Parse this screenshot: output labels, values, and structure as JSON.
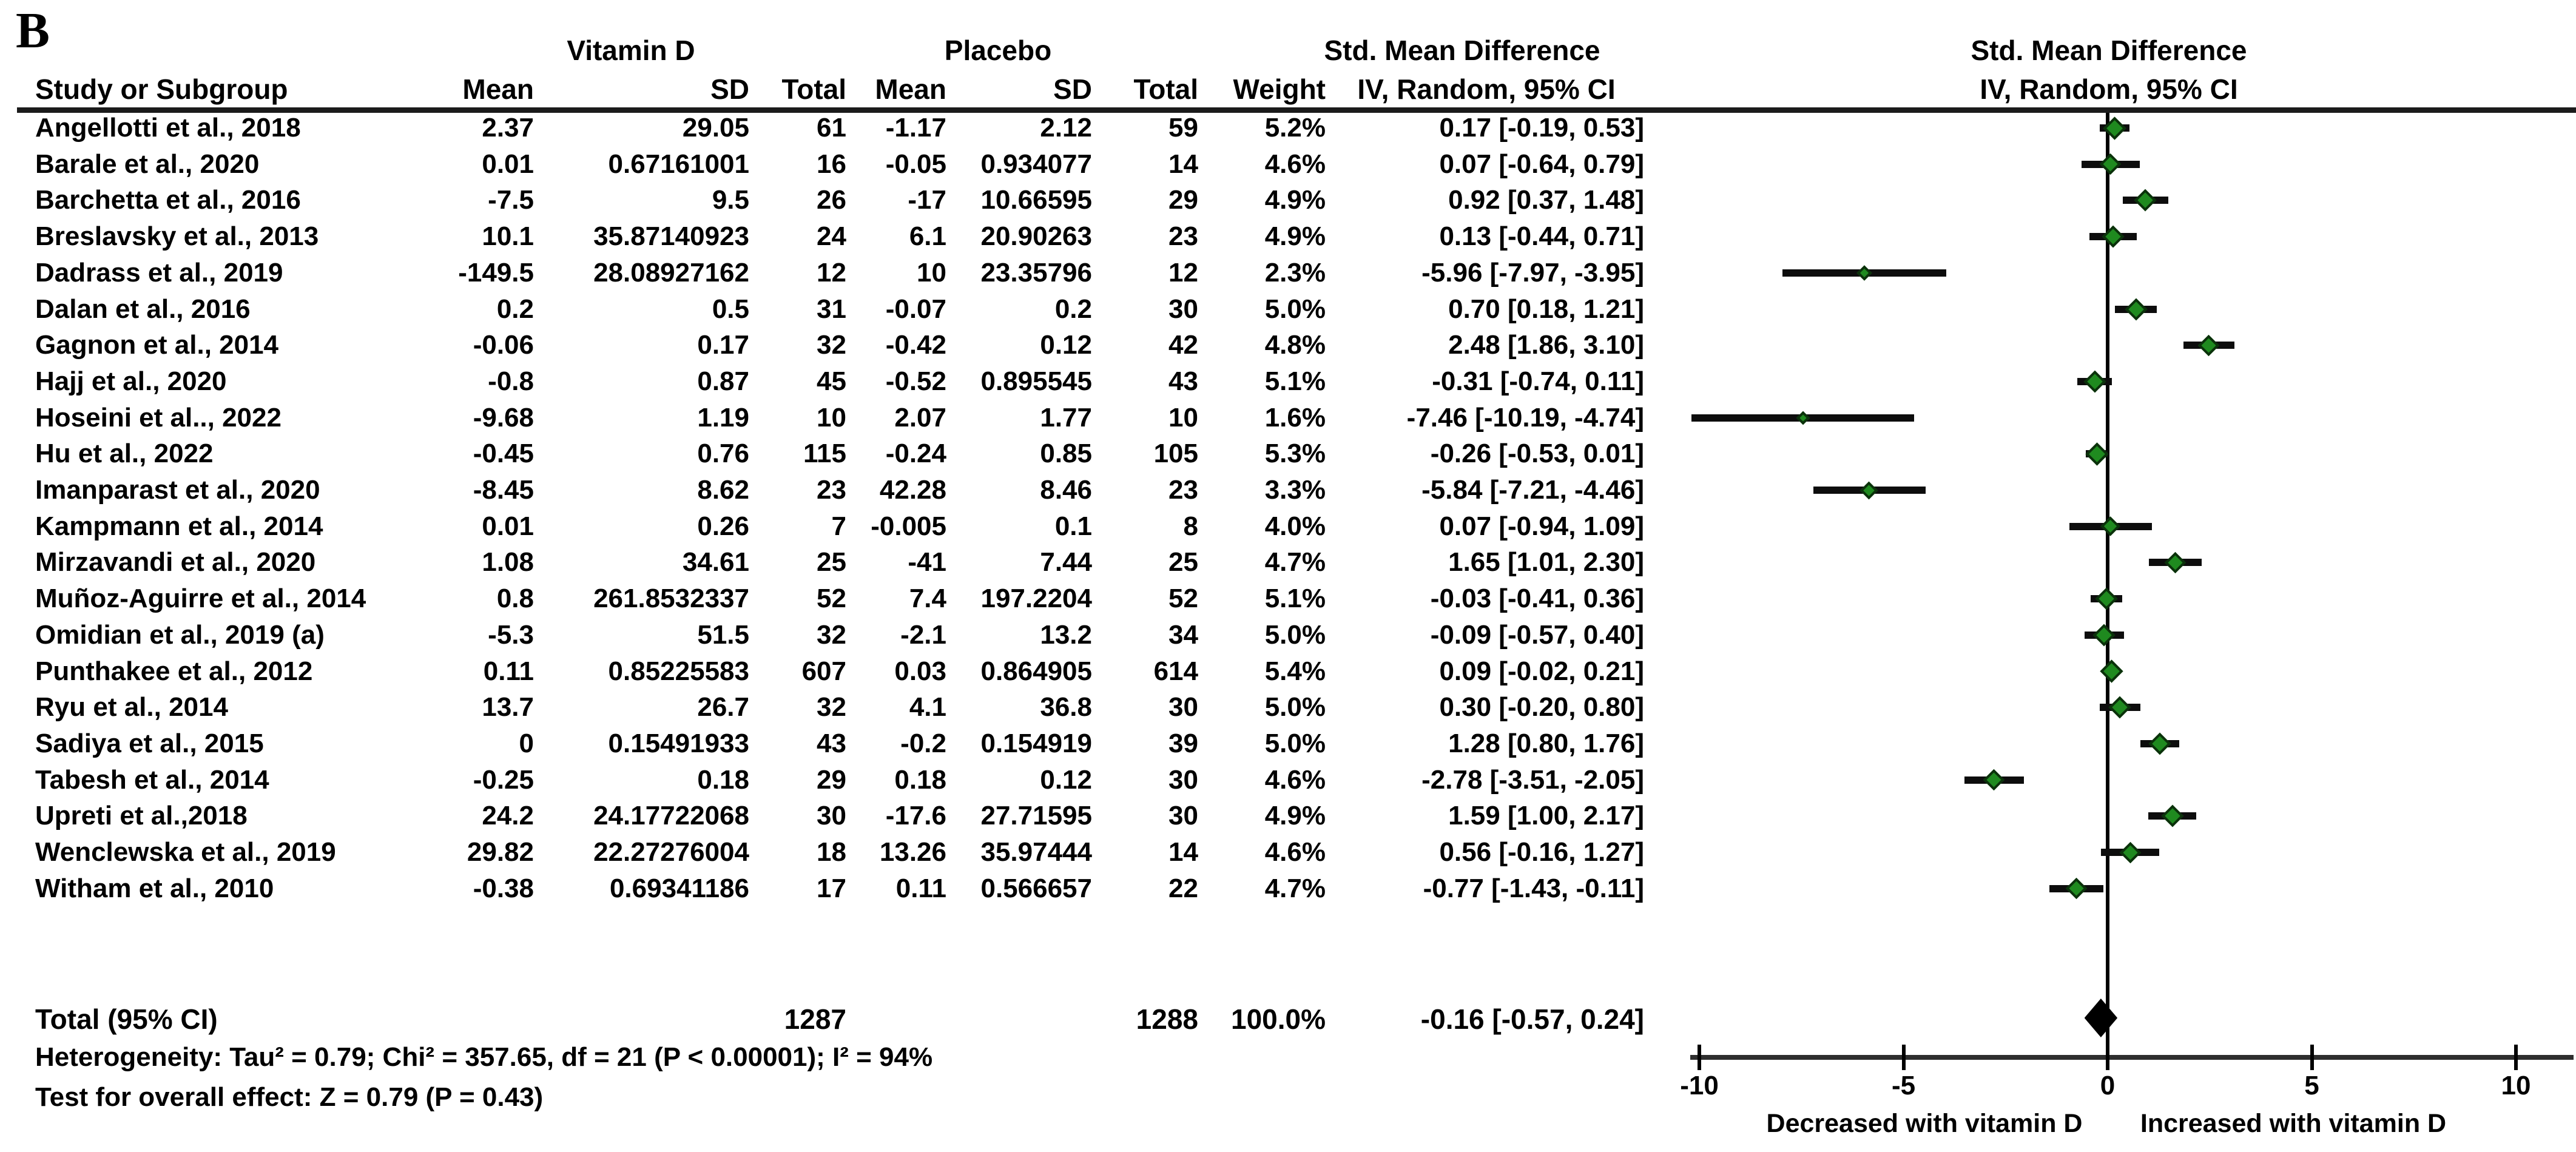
{
  "panel_label": "B",
  "header": {
    "study_col": "Study or Subgroup",
    "group_vitamin_d": "Vitamin D",
    "group_placebo": "Placebo",
    "vd_mean_col": "Mean",
    "vd_sd_col": "SD",
    "vd_total_col": "Total",
    "pl_mean_col": "Mean",
    "pl_sd_col": "SD",
    "pl_total_col": "Total",
    "weight_col": "Weight",
    "smd_col_title": "Std. Mean Difference",
    "smd_col_subtitle": "IV, Random, 95% CI",
    "plot_title": "Std. Mean Difference",
    "plot_subtitle": "IV, Random, 95% CI"
  },
  "footer": {
    "heterogeneity": "Heterogeneity: Tau² = 0.79; Chi² = 357.65, df = 21 (P < 0.00001); I² = 94%",
    "overall_effect": "Test for overall effect: Z = 0.79 (P = 0.43)"
  },
  "chart_data": {
    "type": "forest",
    "effect_measure": "Std. Mean Difference, IV, Random, 95% CI",
    "xticks": [
      -10,
      -5,
      0,
      5,
      10
    ],
    "xtick_labels": [
      "-10",
      "-5",
      "0",
      "5",
      "10"
    ],
    "xlim": [
      -10.2,
      11.4
    ],
    "x_axis_note_left": "Decreased with vitamin D",
    "x_axis_note_right": "Increased with vitamin D",
    "marker_color": "#1f8a1f",
    "marker_border_color": "#0b310b",
    "ci_color": "#0d0d0d",
    "studies": [
      {
        "name": "Angellotti et al., 2018",
        "vd_mean": "2.37",
        "vd_sd": "29.05",
        "vd_total": "61",
        "pl_mean": "-1.17",
        "pl_sd": "2.12",
        "pl_total": "59",
        "weight": "5.2%",
        "ci_text": "0.17 [-0.19, 0.53]",
        "est": 0.17,
        "lo": -0.19,
        "hi": 0.53
      },
      {
        "name": "Barale et al., 2020",
        "vd_mean": "0.01",
        "vd_sd": "0.67161001",
        "vd_total": "16",
        "pl_mean": "-0.05",
        "pl_sd": "0.934077",
        "pl_total": "14",
        "weight": "4.6%",
        "ci_text": "0.07 [-0.64, 0.79]",
        "est": 0.07,
        "lo": -0.64,
        "hi": 0.79
      },
      {
        "name": "Barchetta et al., 2016",
        "vd_mean": "-7.5",
        "vd_sd": "9.5",
        "vd_total": "26",
        "pl_mean": "-17",
        "pl_sd": "10.66595",
        "pl_total": "29",
        "weight": "4.9%",
        "ci_text": "0.92 [0.37, 1.48]",
        "est": 0.92,
        "lo": 0.37,
        "hi": 1.48
      },
      {
        "name": "Breslavsky et al., 2013",
        "vd_mean": "10.1",
        "vd_sd": "35.87140923",
        "vd_total": "24",
        "pl_mean": "6.1",
        "pl_sd": "20.90263",
        "pl_total": "23",
        "weight": "4.9%",
        "ci_text": "0.13 [-0.44, 0.71]",
        "est": 0.13,
        "lo": -0.44,
        "hi": 0.71
      },
      {
        "name": "Dadrass et al., 2019",
        "vd_mean": "-149.5",
        "vd_sd": "28.08927162",
        "vd_total": "12",
        "pl_mean": "10",
        "pl_sd": "23.35796",
        "pl_total": "12",
        "weight": "2.3%",
        "ci_text": "-5.96 [-7.97, -3.95]",
        "est": -5.96,
        "lo": -7.97,
        "hi": -3.95
      },
      {
        "name": "Dalan et al., 2016",
        "vd_mean": "0.2",
        "vd_sd": "0.5",
        "vd_total": "31",
        "pl_mean": "-0.07",
        "pl_sd": "0.2",
        "pl_total": "30",
        "weight": "5.0%",
        "ci_text": "0.70 [0.18, 1.21]",
        "est": 0.7,
        "lo": 0.18,
        "hi": 1.21
      },
      {
        "name": "Gagnon et al., 2014",
        "vd_mean": "-0.06",
        "vd_sd": "0.17",
        "vd_total": "32",
        "pl_mean": "-0.42",
        "pl_sd": "0.12",
        "pl_total": "42",
        "weight": "4.8%",
        "ci_text": "2.48 [1.86, 3.10]",
        "est": 2.48,
        "lo": 1.86,
        "hi": 3.1
      },
      {
        "name": "Hajj et al., 2020",
        "vd_mean": "-0.8",
        "vd_sd": "0.87",
        "vd_total": "45",
        "pl_mean": "-0.52",
        "pl_sd": "0.895545",
        "pl_total": "43",
        "weight": "5.1%",
        "ci_text": "-0.31 [-0.74, 0.11]",
        "est": -0.31,
        "lo": -0.74,
        "hi": 0.11
      },
      {
        "name": "Hoseini et al.., 2022",
        "vd_mean": "-9.68",
        "vd_sd": "1.19",
        "vd_total": "10",
        "pl_mean": "2.07",
        "pl_sd": "1.77",
        "pl_total": "10",
        "weight": "1.6%",
        "ci_text": "-7.46 [-10.19, -4.74]",
        "est": -7.46,
        "lo": -10.19,
        "hi": -4.74
      },
      {
        "name": "Hu et al., 2022",
        "vd_mean": "-0.45",
        "vd_sd": "0.76",
        "vd_total": "115",
        "pl_mean": "-0.24",
        "pl_sd": "0.85",
        "pl_total": "105",
        "weight": "5.3%",
        "ci_text": "-0.26 [-0.53, 0.01]",
        "est": -0.26,
        "lo": -0.53,
        "hi": 0.01
      },
      {
        "name": "Imanparast et al., 2020",
        "vd_mean": "-8.45",
        "vd_sd": "8.62",
        "vd_total": "23",
        "pl_mean": "42.28",
        "pl_sd": "8.46",
        "pl_total": "23",
        "weight": "3.3%",
        "ci_text": "-5.84 [-7.21, -4.46]",
        "est": -5.84,
        "lo": -7.21,
        "hi": -4.46
      },
      {
        "name": "Kampmann et al., 2014",
        "vd_mean": "0.01",
        "vd_sd": "0.26",
        "vd_total": "7",
        "pl_mean": "-0.005",
        "pl_sd": "0.1",
        "pl_total": "8",
        "weight": "4.0%",
        "ci_text": "0.07 [-0.94, 1.09]",
        "est": 0.07,
        "lo": -0.94,
        "hi": 1.09
      },
      {
        "name": "Mirzavandi et al., 2020",
        "vd_mean": "1.08",
        "vd_sd": "34.61",
        "vd_total": "25",
        "pl_mean": "-41",
        "pl_sd": "7.44",
        "pl_total": "25",
        "weight": "4.7%",
        "ci_text": "1.65 [1.01, 2.30]",
        "est": 1.65,
        "lo": 1.01,
        "hi": 2.3
      },
      {
        "name": "Muñoz-Aguirre et al., 2014",
        "vd_mean": "0.8",
        "vd_sd": "261.8532337",
        "vd_total": "52",
        "pl_mean": "7.4",
        "pl_sd": "197.2204",
        "pl_total": "52",
        "weight": "5.1%",
        "ci_text": "-0.03 [-0.41, 0.36]",
        "est": -0.03,
        "lo": -0.41,
        "hi": 0.36
      },
      {
        "name": "Omidian et al., 2019 (a)",
        "vd_mean": "-5.3",
        "vd_sd": "51.5",
        "vd_total": "32",
        "pl_mean": "-2.1",
        "pl_sd": "13.2",
        "pl_total": "34",
        "weight": "5.0%",
        "ci_text": "-0.09 [-0.57, 0.40]",
        "est": -0.09,
        "lo": -0.57,
        "hi": 0.4
      },
      {
        "name": "Punthakee et al., 2012",
        "vd_mean": "0.11",
        "vd_sd": "0.85225583",
        "vd_total": "607",
        "pl_mean": "0.03",
        "pl_sd": "0.864905",
        "pl_total": "614",
        "weight": "5.4%",
        "ci_text": "0.09 [-0.02, 0.21]",
        "est": 0.09,
        "lo": -0.02,
        "hi": 0.21
      },
      {
        "name": "Ryu et al., 2014",
        "vd_mean": "13.7",
        "vd_sd": "26.7",
        "vd_total": "32",
        "pl_mean": "4.1",
        "pl_sd": "36.8",
        "pl_total": "30",
        "weight": "5.0%",
        "ci_text": "0.30 [-0.20, 0.80]",
        "est": 0.3,
        "lo": -0.2,
        "hi": 0.8
      },
      {
        "name": "Sadiya et al., 2015",
        "vd_mean": "0",
        "vd_sd": "0.15491933",
        "vd_total": "43",
        "pl_mean": "-0.2",
        "pl_sd": "0.154919",
        "pl_total": "39",
        "weight": "5.0%",
        "ci_text": "1.28 [0.80, 1.76]",
        "est": 1.28,
        "lo": 0.8,
        "hi": 1.76
      },
      {
        "name": "Tabesh et al., 2014",
        "vd_mean": "-0.25",
        "vd_sd": "0.18",
        "vd_total": "29",
        "pl_mean": "0.18",
        "pl_sd": "0.12",
        "pl_total": "30",
        "weight": "4.6%",
        "ci_text": "-2.78 [-3.51, -2.05]",
        "est": -2.78,
        "lo": -3.51,
        "hi": -2.05
      },
      {
        "name": "Upreti et al.,2018",
        "vd_mean": "24.2",
        "vd_sd": "24.17722068",
        "vd_total": "30",
        "pl_mean": "-17.6",
        "pl_sd": "27.71595",
        "pl_total": "30",
        "weight": "4.9%",
        "ci_text": "1.59 [1.00, 2.17]",
        "est": 1.59,
        "lo": 1.0,
        "hi": 2.17
      },
      {
        "name": "Wenclewska et al., 2019",
        "vd_mean": "29.82",
        "vd_sd": "22.27276004",
        "vd_total": "18",
        "pl_mean": "13.26",
        "pl_sd": "35.97444",
        "pl_total": "14",
        "weight": "4.6%",
        "ci_text": "0.56 [-0.16, 1.27]",
        "est": 0.56,
        "lo": -0.16,
        "hi": 1.27
      },
      {
        "name": "Witham et al., 2010",
        "vd_mean": "-0.38",
        "vd_sd": "0.69341186",
        "vd_total": "17",
        "pl_mean": "0.11",
        "pl_sd": "0.566657",
        "pl_total": "22",
        "weight": "4.7%",
        "ci_text": "-0.77 [-1.43, -0.11]",
        "est": -0.77,
        "lo": -1.43,
        "hi": -0.11
      }
    ],
    "total": {
      "label": "Total (95% CI)",
      "vd_total": "1287",
      "pl_total": "1288",
      "weight": "100.0%",
      "ci_text": "-0.16 [-0.57, 0.24]",
      "est": -0.16,
      "lo": -0.57,
      "hi": 0.24
    }
  }
}
